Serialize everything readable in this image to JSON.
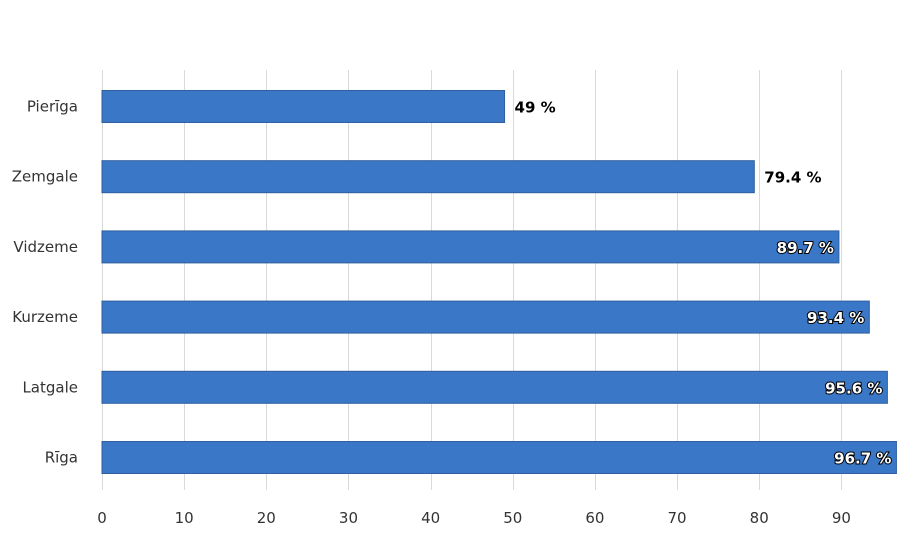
{
  "chart_data": {
    "type": "bar",
    "orientation": "horizontal",
    "title": "",
    "xlabel": "",
    "ylabel": "",
    "categories": [
      "Pierīga",
      "Zemgale",
      "Vidzeme",
      "Kurzeme",
      "Latgale",
      "Rīga"
    ],
    "values": [
      49,
      79.4,
      89.7,
      93.4,
      95.6,
      96.7
    ],
    "data_labels": [
      "49 %",
      "79.4 %",
      "89.7 %",
      "93.4 %",
      "95.6 %",
      "96.7 %"
    ],
    "xlim": [
      0,
      97.5
    ],
    "x_ticks": [
      0,
      10,
      20,
      30,
      40,
      50,
      60,
      70,
      80,
      90
    ],
    "grid": true,
    "legend": "none",
    "colors": {
      "bar": "#3a77c6",
      "bar_edge": "#2f5f9e",
      "grid": "#d9d9d9",
      "label": "#333333"
    }
  }
}
